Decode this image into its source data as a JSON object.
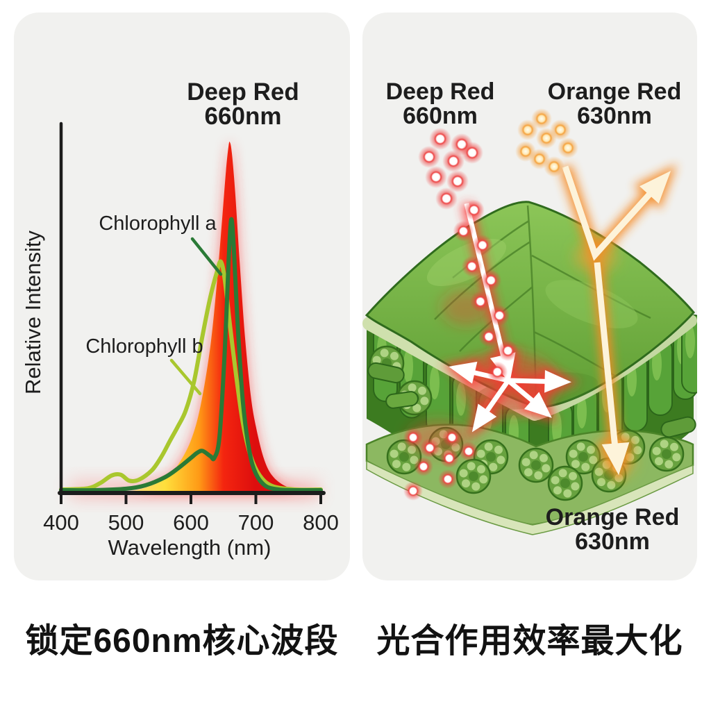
{
  "left_panel": {
    "caption": "锁定660nm核心波段",
    "chart": {
      "title_line1": "Deep Red",
      "title_line2": "660nm",
      "series_a_label": "Chlorophyll a",
      "series_b_label": "Chlorophyll b",
      "xlabel": "Wavelength (nm)",
      "ylabel": "Relative Intensity"
    }
  },
  "right_panel": {
    "caption": "光合作用效率最大化",
    "labels": {
      "deep_red_line1": "Deep Red",
      "deep_red_line2": "660nm",
      "orange_red_top_line1": "Orange Red",
      "orange_red_top_line2": "630nm",
      "orange_red_bottom_line1": "Orange Red",
      "orange_red_bottom_line2": "630nm"
    }
  },
  "chart_data": {
    "type": "area",
    "title": "Deep Red 660nm",
    "xlabel": "Wavelength (nm)",
    "ylabel": "Relative Intensity",
    "xlim": [
      400,
      800
    ],
    "ylim": [
      0,
      1
    ],
    "xticks": [
      400,
      500,
      600,
      700,
      800
    ],
    "grid": false,
    "legend_position": "inline-annotations",
    "series": [
      {
        "name": "Deep Red LED 660nm",
        "style": "area",
        "color_gradient": [
          "#ffdf45",
          "#ff9b16",
          "#f0250f",
          "#d80d0d"
        ],
        "x": [
          400,
          480,
          520,
          560,
          580,
          600,
          615,
          630,
          640,
          648,
          654,
          658,
          660,
          663,
          668,
          675,
          683,
          692,
          700,
          712,
          725,
          745,
          770,
          800
        ],
        "y": [
          0,
          0.004,
          0.01,
          0.04,
          0.08,
          0.15,
          0.25,
          0.42,
          0.6,
          0.78,
          0.92,
          0.99,
          1.0,
          0.97,
          0.86,
          0.66,
          0.45,
          0.28,
          0.19,
          0.1,
          0.05,
          0.02,
          0.008,
          0.004
        ]
      },
      {
        "name": "Chlorophyll a",
        "style": "line",
        "color": "#2a7a36",
        "x": [
          400,
          450,
          500,
          530,
          560,
          580,
          600,
          610,
          618,
          630,
          636,
          644,
          652,
          658,
          662,
          666,
          672,
          680,
          690,
          700,
          715,
          735,
          760,
          800
        ],
        "y": [
          0.008,
          0.008,
          0.012,
          0.022,
          0.045,
          0.07,
          0.1,
          0.115,
          0.12,
          0.105,
          0.1,
          0.16,
          0.4,
          0.66,
          0.78,
          0.7,
          0.48,
          0.26,
          0.12,
          0.055,
          0.02,
          0.01,
          0.008,
          0.008
        ]
      },
      {
        "name": "Chlorophyll b",
        "style": "line",
        "color": "#a9c72e",
        "x": [
          400,
          440,
          460,
          478,
          492,
          505,
          520,
          540,
          555,
          568,
          580,
          592,
          605,
          618,
          630,
          640,
          646,
          652,
          660,
          670,
          680,
          692,
          706,
          725,
          760,
          800
        ],
        "y": [
          0.01,
          0.013,
          0.028,
          0.05,
          0.052,
          0.035,
          0.038,
          0.065,
          0.105,
          0.15,
          0.19,
          0.235,
          0.32,
          0.45,
          0.56,
          0.63,
          0.66,
          0.61,
          0.48,
          0.33,
          0.2,
          0.105,
          0.05,
          0.02,
          0.01,
          0.01
        ]
      }
    ],
    "annotations": [
      "Deep Red 660nm",
      "Chlorophyll a",
      "Chlorophyll b"
    ]
  },
  "colors": {
    "page_bg": "#ffffff",
    "panel_bg": "#f1f1ef",
    "text": "#1d1d1d",
    "led_red": "#e8150f",
    "chlorophyll_a": "#2a7a36",
    "chlorophyll_b": "#a9c72e",
    "leaf_green": "#76b33e",
    "leaf_outline": "#2f6b1d",
    "leaf_cut_edge": "#cfe0ad",
    "photon_red": "#ee4545",
    "photon_orange": "#f5a23c",
    "arrow_cream": "#fdf3da"
  }
}
